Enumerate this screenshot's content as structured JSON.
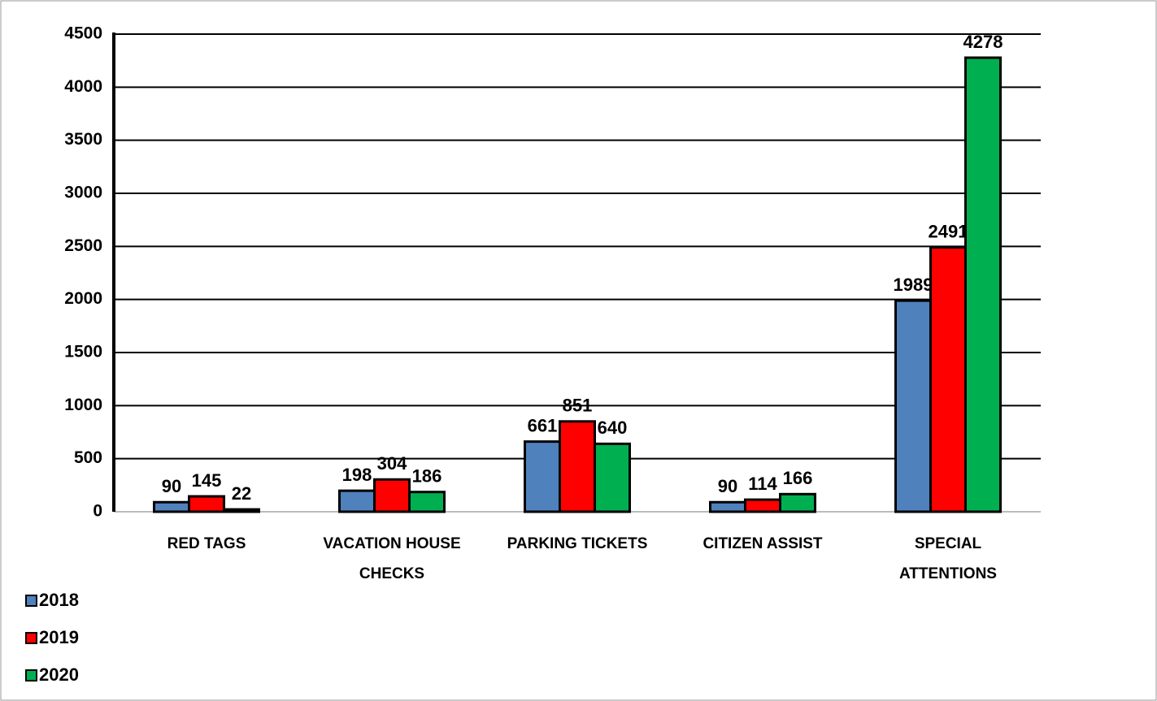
{
  "chart_data": {
    "type": "bar",
    "categories": [
      "RED TAGS",
      "VACATION HOUSE CHECKS",
      "PARKING TICKETS",
      "CITIZEN ASSIST",
      "SPECIAL ATTENTIONS"
    ],
    "series": [
      {
        "name": "2018",
        "color": "#4f81bd",
        "values": [
          90,
          198,
          661,
          90,
          1989
        ]
      },
      {
        "name": "2019",
        "color": "#ff0000",
        "values": [
          145,
          304,
          851,
          114,
          2491
        ]
      },
      {
        "name": "2020",
        "color": "#00b050",
        "values": [
          22,
          186,
          640,
          166,
          4278
        ]
      }
    ],
    "ylim": [
      0,
      4500
    ],
    "yticks": [
      0,
      500,
      1000,
      1500,
      2000,
      2500,
      3000,
      3500,
      4000,
      4500
    ],
    "grid": true,
    "legend": "bottom-left"
  }
}
